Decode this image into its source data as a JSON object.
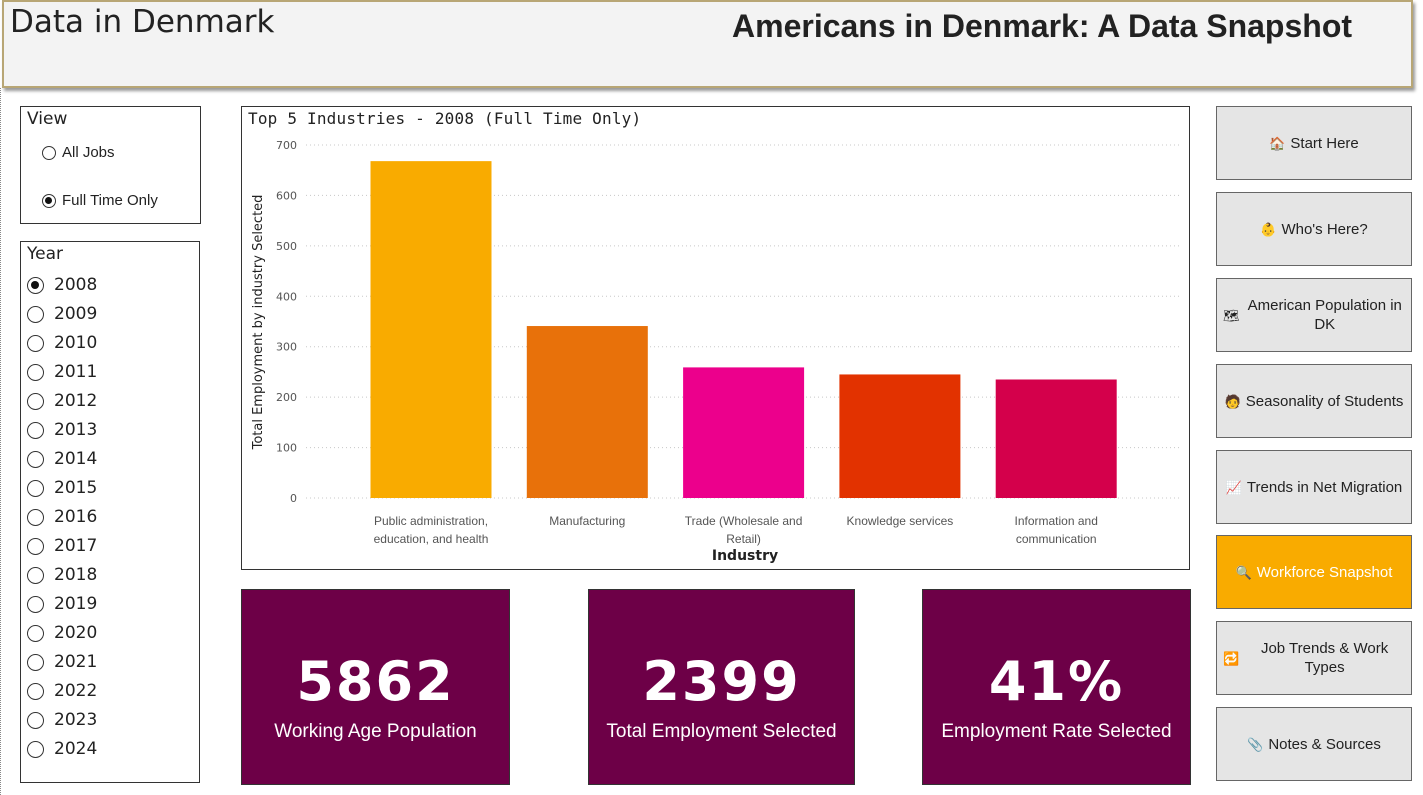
{
  "header": {
    "site_title": "Data in Denmark",
    "page_title": "Americans in Denmark: A Data Snapshot"
  },
  "view_filter": {
    "title": "View",
    "options": [
      "All Jobs",
      "Full Time Only"
    ],
    "selected": "Full Time Only"
  },
  "year_filter": {
    "title": "Year",
    "options": [
      "2008",
      "2009",
      "2010",
      "2011",
      "2012",
      "2013",
      "2014",
      "2015",
      "2016",
      "2017",
      "2018",
      "2019",
      "2020",
      "2021",
      "2022",
      "2023",
      "2024"
    ],
    "selected": "2008"
  },
  "chart_data": {
    "type": "bar",
    "title": "Top 5 Industries - 2008 (Full Time Only)",
    "xlabel": "Industry",
    "ylabel": "Total Employment by industry Selected",
    "ylim": [
      0,
      700
    ],
    "yticks": [
      0,
      100,
      200,
      300,
      400,
      500,
      600,
      700
    ],
    "grid": true,
    "categories": [
      [
        "Public administration,",
        "education, and health"
      ],
      [
        "Manufacturing"
      ],
      [
        "Trade (Wholesale and",
        "Retail)"
      ],
      [
        "Knowledge services"
      ],
      [
        "Information and",
        "communication"
      ]
    ],
    "values": [
      668,
      341,
      259,
      245,
      235
    ],
    "colors": [
      "#f9ab00",
      "#e8710a",
      "#ec008c",
      "#e23200",
      "#d4004b"
    ]
  },
  "kpis": [
    {
      "value": "5862",
      "label": "Working Age Population"
    },
    {
      "value": "2399",
      "label": "Total Employment Selected"
    },
    {
      "value": "41%",
      "label": "Employment Rate Selected"
    }
  ],
  "kpi_color": "#6d0047",
  "nav": [
    {
      "icon": "🏠",
      "icon_name": "house-icon",
      "label": "Start Here"
    },
    {
      "icon": "👶",
      "icon_name": "person-icon",
      "label": "Who's Here?"
    },
    {
      "icon": "🗺",
      "icon_name": "map-icon",
      "label": "American Population in DK"
    },
    {
      "icon": "🧑",
      "icon_name": "student-icon",
      "label": "Seasonality of Students"
    },
    {
      "icon": "📈",
      "icon_name": "chart-increasing-icon",
      "label": "Trends in Net Migration"
    },
    {
      "icon": "🔍",
      "icon_name": "magnifier-icon",
      "label": "Workforce Snapshot",
      "active": true
    },
    {
      "icon": "🔁",
      "icon_name": "repeat-icon",
      "label": "Job Trends & Work Types"
    },
    {
      "icon": "📎",
      "icon_name": "paperclip-icon",
      "label": "Notes & Sources"
    }
  ],
  "accent_color": "#f9ab00"
}
